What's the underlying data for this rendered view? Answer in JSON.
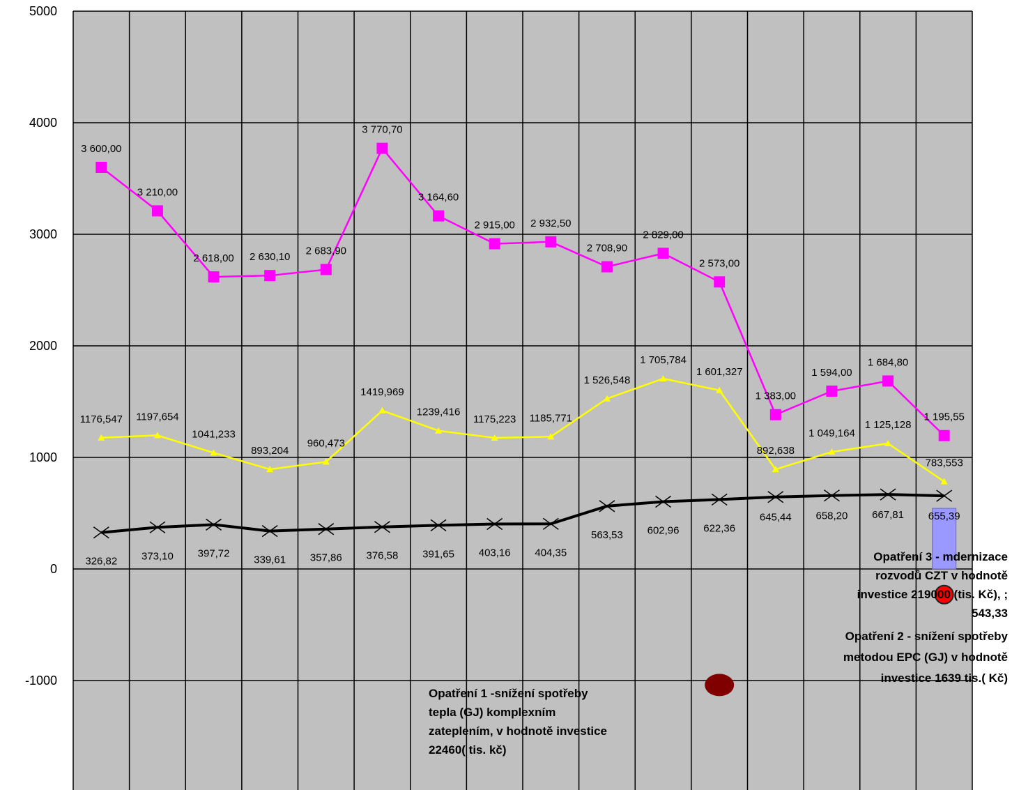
{
  "chart_data": {
    "type": "line",
    "title": "",
    "xlabel": "",
    "ylabel": "",
    "ylim": [
      -2000,
      5000
    ],
    "yticks": [
      5000,
      4000,
      3000,
      2000,
      1000,
      0,
      -1000
    ],
    "grid": true,
    "legend": "none",
    "plot_background": "#c0c0c0",
    "x": [
      1,
      2,
      3,
      4,
      5,
      6,
      7,
      8,
      9,
      10,
      11,
      12,
      13,
      14,
      15,
      16
    ],
    "series": [
      {
        "color": "#ff00ff",
        "marker": "square",
        "values": [
          3600,
          3210,
          2618,
          2630.1,
          2683.9,
          3770.7,
          3164.6,
          2915,
          2932.5,
          2708.9,
          2829,
          2573,
          1383,
          1594,
          1684.8,
          1195.55
        ],
        "labels": [
          "3 600,00",
          "3 210,00",
          "2 618,00",
          "2 630,10",
          "2 683,90",
          "3 770,70",
          "3 164,60",
          "2 915,00",
          "2 932,50",
          "2 708,90",
          "2 829,00",
          "2 573,00",
          "1 383,00",
          "1 594,00",
          "1 684,80",
          "1 195,55"
        ]
      },
      {
        "color": "#ffff00",
        "marker": "triangle",
        "values": [
          1176.547,
          1197.654,
          1041.233,
          893.204,
          960.473,
          1419.969,
          1239.416,
          1175.223,
          1185.771,
          1526.548,
          1705.784,
          1601.327,
          892.638,
          1049.164,
          1125.128,
          783.553
        ],
        "labels": [
          "1176,547",
          "1197,654",
          "1041,233",
          "893,204",
          "960,473",
          "1419,969",
          "1239,416",
          "1175,223",
          "1185,771",
          "1 526,548",
          "1 705,784",
          "1 601,327",
          "892,638",
          "1 049,164",
          "1 125,128",
          "783,553"
        ]
      },
      {
        "color": "#000000",
        "marker": "x",
        "values": [
          326.82,
          373.1,
          397.72,
          339.61,
          357.86,
          376.58,
          391.65,
          403.16,
          404.35,
          563.53,
          602.96,
          622.36,
          645.44,
          658.2,
          667.81,
          655.39
        ],
        "labels": [
          "326,82",
          "373,10",
          "397,72",
          "339,61",
          "357,86",
          "376,58",
          "391,65",
          "403,16",
          "404,35",
          "563,53",
          "602,96",
          "622,36",
          "645,44",
          "658,20",
          "667,81",
          "655,39"
        ]
      }
    ],
    "bar": {
      "x": 16,
      "value": 543.33,
      "color": "#9999ff"
    },
    "points": [
      {
        "x": 16,
        "value": -230,
        "color": "#ff0000"
      },
      {
        "x": 12,
        "value": -1040,
        "color": "#800000"
      }
    ],
    "annotations": [
      {
        "anchor": "right",
        "lines": [
          "Opatření 3 - mdernizace",
          "rozvodů CZT v hodnotě",
          "investice 219000 (tis. Kč), ;",
          "543,33"
        ]
      },
      {
        "anchor": "right",
        "lines": [
          "Opatření 2 - snížení spotřeby",
          "metodou EPC (GJ) v hodnotě",
          "investice 1639 tis.( Kč)"
        ]
      },
      {
        "anchor": "left",
        "lines": [
          "Opatření 1 -snížení spotřeby",
          "tepla (GJ) komplexním",
          "zateplením, v hodnotě investice",
          "22460( tis. kč)"
        ]
      }
    ]
  }
}
